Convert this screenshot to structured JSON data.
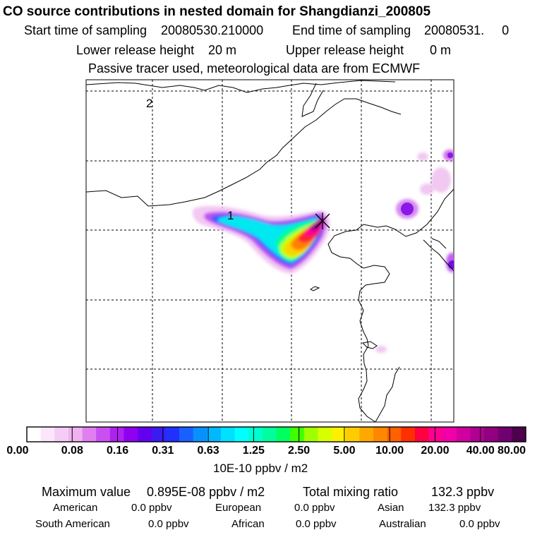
{
  "header": {
    "title": "CO  source contributions in nested domain for Shangdianzi_200805",
    "start_label": "Start time of sampling",
    "start_value": "20080530.210000",
    "end_label": "End time of sampling",
    "end_value": "20080531.     0",
    "lower_label": "Lower release height",
    "lower_value": "20 m",
    "upper_label": "Upper release height",
    "upper_value": "0 m",
    "tracer_note": "Passive tracer used, meteorological data are from ECMWF"
  },
  "map": {
    "region_labels": [
      "2",
      "1"
    ],
    "station_marker": "cross-icon"
  },
  "colorbar": {
    "colors": [
      "#ffffff",
      "#fbe6fb",
      "#f5ccf5",
      "#efb3ef",
      "#e080f0",
      "#c850f0",
      "#b020f0",
      "#9000f0",
      "#6400f0",
      "#3a1cf0",
      "#2030ff",
      "#1860ff",
      "#0890ff",
      "#00b8ff",
      "#00e0ff",
      "#00ffff",
      "#00ffd0",
      "#00ff9c",
      "#00ff60",
      "#40ff00",
      "#a0ff00",
      "#d8ff00",
      "#fff000",
      "#ffcc00",
      "#ffa800",
      "#ff8800",
      "#ff6000",
      "#ff3000",
      "#ff0040",
      "#ff0090",
      "#f000a8",
      "#d000a0",
      "#b00090",
      "#900080",
      "#700070",
      "#4e004e"
    ],
    "labels": [
      "0.00",
      "0.08",
      "0.16",
      "0.31",
      "0.63",
      "1.25",
      "2.50",
      "5.00",
      "10.00",
      "20.00",
      "40.00",
      "80.00"
    ],
    "units": "10E-10 ppbv / m2"
  },
  "stats": {
    "max_label": "Maximum value",
    "max_value": "0.895E-08 ppbv / m2",
    "total_label": "Total mixing ratio",
    "total_value": "132.3 ppbv",
    "regions": [
      {
        "name": "American",
        "value": "0.0 ppbv"
      },
      {
        "name": "European",
        "value": "0.0 ppbv"
      },
      {
        "name": "Asian",
        "value": "132.3 ppbv"
      },
      {
        "name": "South American",
        "value": "0.0 ppbv"
      },
      {
        "name": "African",
        "value": "0.0 ppbv"
      },
      {
        "name": "Australian",
        "value": "0.0 ppbv"
      }
    ]
  }
}
